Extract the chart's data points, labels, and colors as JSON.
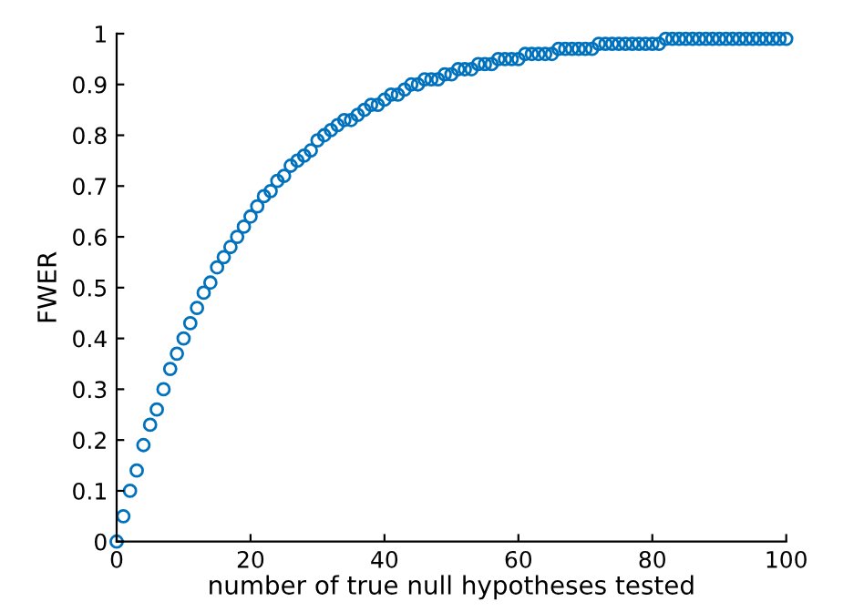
{
  "chart_data": {
    "type": "scatter",
    "xlabel": "number of true null hypotheses tested",
    "ylabel": "FWER",
    "marker": "circle",
    "xlim": [
      0,
      100
    ],
    "xticks": [
      0,
      20,
      40,
      60,
      80,
      100
    ],
    "ylim": [
      0,
      1
    ],
    "yticks": [
      0,
      0.1,
      0.2,
      0.3,
      0.4,
      0.5,
      0.6,
      0.7,
      0.8,
      0.9,
      1
    ],
    "series": [
      {
        "color": "#0072bd",
        "x": [
          0,
          1,
          2,
          3,
          4,
          5,
          6,
          7,
          8,
          9,
          10,
          11,
          12,
          13,
          14,
          15,
          16,
          17,
          18,
          19,
          20,
          21,
          22,
          23,
          24,
          25,
          26,
          27,
          28,
          29,
          30,
          31,
          32,
          33,
          34,
          35,
          36,
          37,
          38,
          39,
          40,
          41,
          42,
          43,
          44,
          45,
          46,
          47,
          48,
          49,
          50,
          51,
          52,
          53,
          54,
          55,
          56,
          57,
          58,
          59,
          60,
          61,
          62,
          63,
          64,
          65,
          66,
          67,
          68,
          69,
          70,
          71,
          72,
          73,
          74,
          75,
          76,
          77,
          78,
          79,
          80,
          81,
          82,
          83,
          84,
          85,
          86,
          87,
          88,
          89,
          90,
          91,
          92,
          93,
          94,
          95,
          96,
          97,
          98,
          99,
          100
        ],
        "values": [
          0,
          0.05,
          0.1,
          0.14,
          0.19,
          0.23,
          0.26,
          0.3,
          0.34,
          0.37,
          0.4,
          0.43,
          0.46,
          0.49,
          0.51,
          0.54,
          0.56,
          0.58,
          0.6,
          0.62,
          0.64,
          0.66,
          0.68,
          0.69,
          0.71,
          0.72,
          0.74,
          0.75,
          0.76,
          0.77,
          0.79,
          0.8,
          0.81,
          0.82,
          0.83,
          0.83,
          0.84,
          0.85,
          0.86,
          0.86,
          0.87,
          0.88,
          0.88,
          0.89,
          0.9,
          0.9,
          0.91,
          0.91,
          0.91,
          0.92,
          0.92,
          0.93,
          0.93,
          0.93,
          0.94,
          0.94,
          0.94,
          0.95,
          0.95,
          0.95,
          0.95,
          0.96,
          0.96,
          0.96,
          0.96,
          0.96,
          0.97,
          0.97,
          0.97,
          0.97,
          0.97,
          0.97,
          0.98,
          0.98,
          0.98,
          0.98,
          0.98,
          0.98,
          0.98,
          0.98,
          0.98,
          0.98,
          0.99,
          0.99,
          0.99,
          0.99,
          0.99,
          0.99,
          0.99,
          0.99,
          0.99,
          0.99,
          0.99,
          0.99,
          0.99,
          0.99,
          0.99,
          0.99,
          0.99,
          0.99,
          0.99
        ]
      }
    ]
  }
}
